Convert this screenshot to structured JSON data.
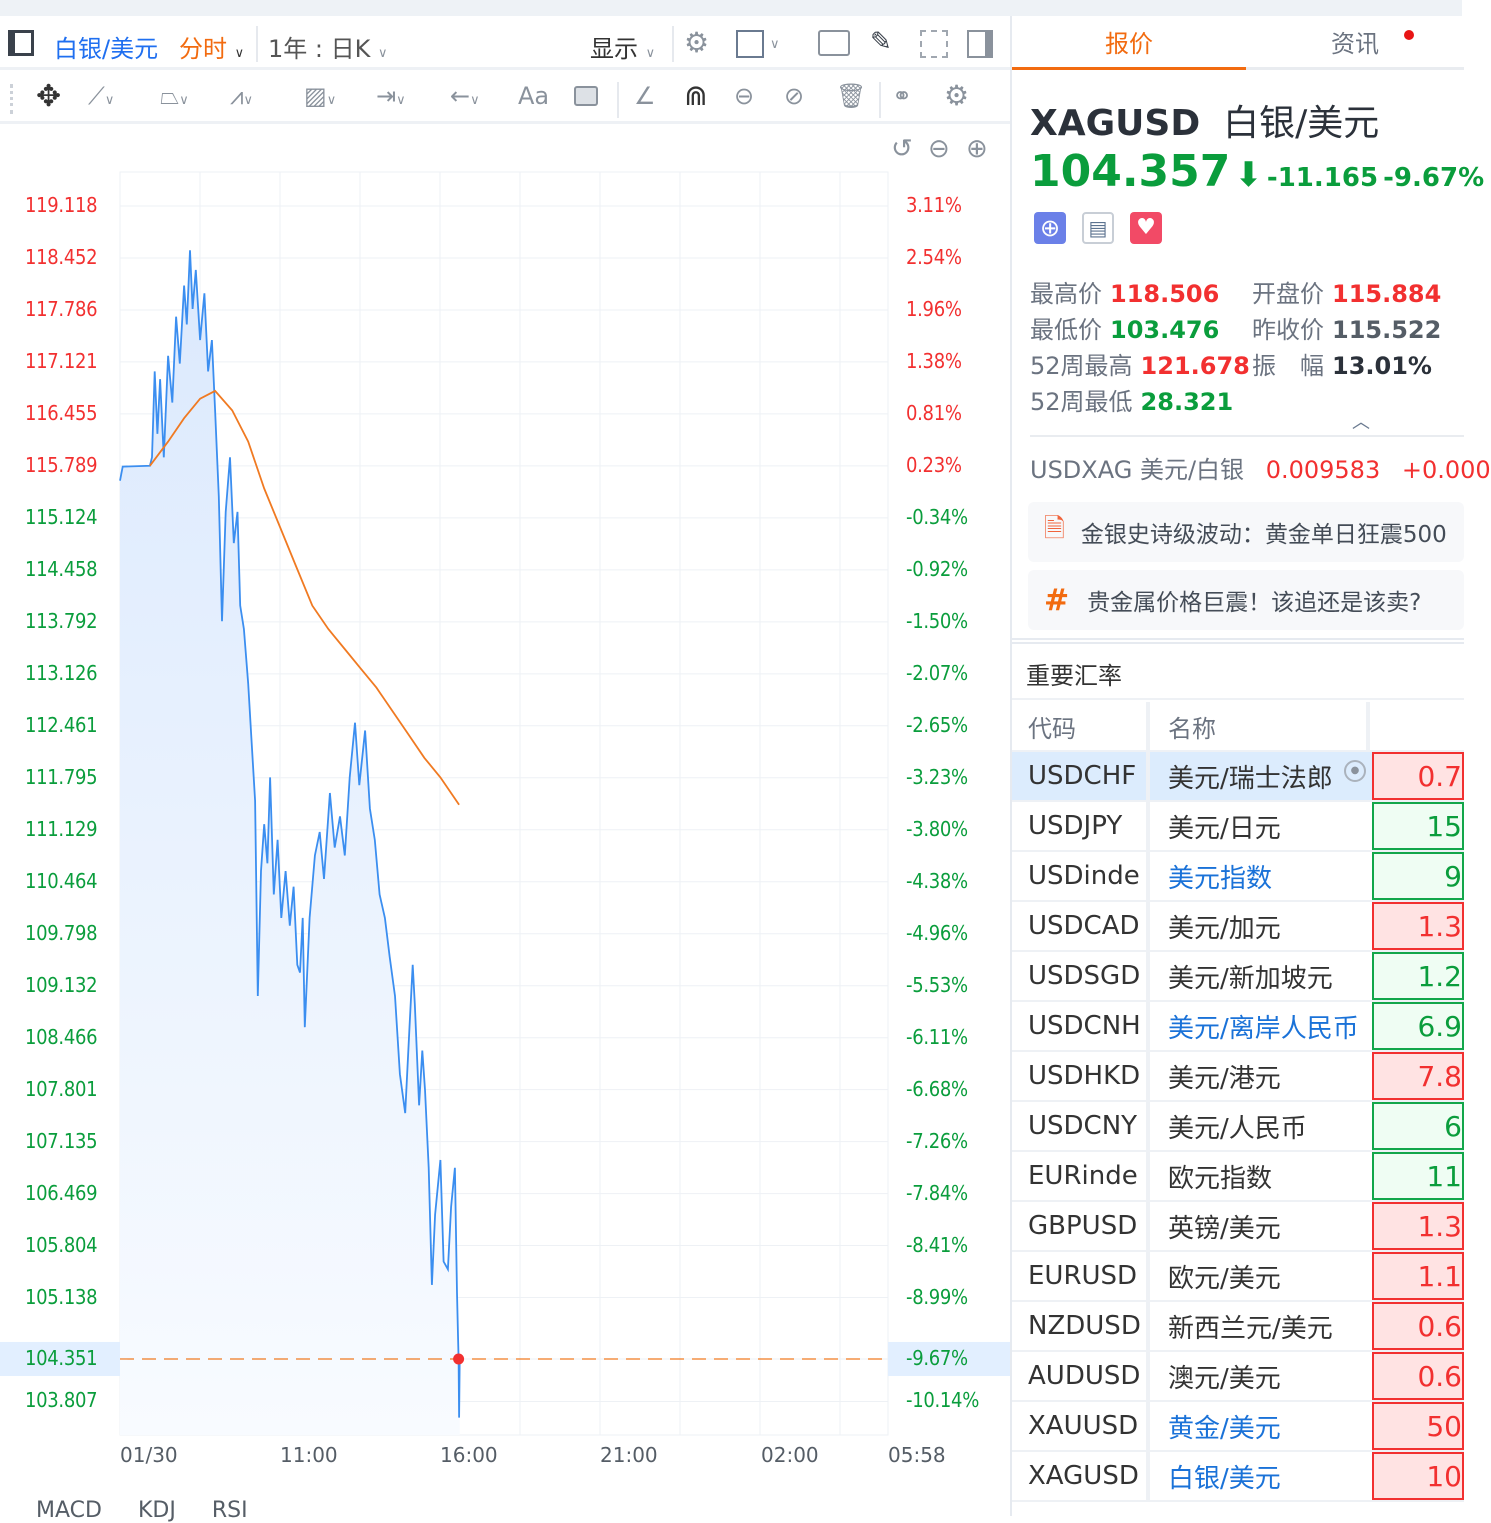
{
  "toolbar": {
    "symbol": "白银/美元",
    "period": "分时",
    "range": "1年 : 日K",
    "display": "显示"
  },
  "drawing_tools": [
    "move",
    "line",
    "polyline",
    "wave",
    "fib",
    "measure",
    "arrow",
    "text",
    "comment",
    "ruler",
    "magnet",
    "hide-drawings",
    "visibility",
    "delete",
    "compare",
    "settings"
  ],
  "chart": {
    "zoom_controls": [
      "undo",
      "zoom-out",
      "zoom-in"
    ],
    "bottom_tabs": [
      "MACD",
      "KDJ",
      "RSI"
    ]
  },
  "chart_data": {
    "type": "line",
    "prev_close": 115.522,
    "last_price": 104.351,
    "last_pct": "-9.67%",
    "y_ticks": [
      "119.118",
      "118.452",
      "117.786",
      "117.121",
      "116.455",
      "115.789",
      "115.124",
      "114.458",
      "113.792",
      "113.126",
      "112.461",
      "111.795",
      "111.129",
      "110.464",
      "109.798",
      "109.132",
      "108.466",
      "107.801",
      "107.135",
      "106.469",
      "105.804",
      "105.138",
      "104.351",
      "103.807"
    ],
    "pct_ticks": [
      "3.11%",
      "2.54%",
      "1.96%",
      "1.38%",
      "0.81%",
      "0.23%",
      "-0.34%",
      "-0.92%",
      "-1.50%",
      "-2.07%",
      "-2.65%",
      "-3.23%",
      "-3.80%",
      "-4.38%",
      "-4.96%",
      "-5.53%",
      "-6.11%",
      "-6.68%",
      "-7.26%",
      "-7.84%",
      "-8.41%",
      "-8.99%",
      "-9.67%",
      "-10.14%"
    ],
    "x_ticks": [
      "01/30",
      "11:00",
      "16:00",
      "21:00",
      "02:00",
      "05:58"
    ],
    "x_range": [
      "06:00",
      "05:58"
    ],
    "y_range": [
      103.2,
      119.6
    ],
    "colors": {
      "price": "#3b8ef0",
      "avg": "#f07a22",
      "up": "#f23030",
      "down": "#0a9d3c",
      "fill": "#dbe9fd"
    },
    "price": [
      [
        "06:00",
        115.6
      ],
      [
        "06:05",
        115.78
      ],
      [
        "06:56",
        115.79
      ],
      [
        "07:00",
        115.9
      ],
      [
        "07:05",
        117.0
      ],
      [
        "07:10",
        116.2
      ],
      [
        "07:15",
        116.9
      ],
      [
        "07:22",
        115.9
      ],
      [
        "07:30",
        117.2
      ],
      [
        "07:38",
        116.6
      ],
      [
        "07:45",
        117.7
      ],
      [
        "07:52",
        117.1
      ],
      [
        "08:00",
        118.1
      ],
      [
        "08:05",
        117.6
      ],
      [
        "08:11",
        118.55
      ],
      [
        "08:16",
        117.8
      ],
      [
        "08:22",
        118.3
      ],
      [
        "08:30",
        117.4
      ],
      [
        "08:38",
        118.0
      ],
      [
        "08:45",
        117.0
      ],
      [
        "08:52",
        117.4
      ],
      [
        "08:58",
        116.5
      ],
      [
        "09:05",
        115.4
      ],
      [
        "09:11",
        113.8
      ],
      [
        "09:18",
        115.2
      ],
      [
        "09:26",
        115.9
      ],
      [
        "09:33",
        114.8
      ],
      [
        "09:40",
        115.2
      ],
      [
        "09:45",
        114.0
      ],
      [
        "09:52",
        113.7
      ],
      [
        "10:00",
        113.0
      ],
      [
        "10:06",
        112.3
      ],
      [
        "10:13",
        111.5
      ],
      [
        "10:18",
        109.0
      ],
      [
        "10:24",
        110.6
      ],
      [
        "10:30",
        111.2
      ],
      [
        "10:36",
        110.7
      ],
      [
        "10:41",
        111.8
      ],
      [
        "10:48",
        110.3
      ],
      [
        "10:55",
        111.0
      ],
      [
        "11:02",
        110.0
      ],
      [
        "11:10",
        110.6
      ],
      [
        "11:18",
        109.9
      ],
      [
        "11:25",
        110.4
      ],
      [
        "11:32",
        109.4
      ],
      [
        "11:37",
        109.3
      ],
      [
        "11:42",
        110.0
      ],
      [
        "11:46",
        108.6
      ],
      [
        "11:55",
        110.0
      ],
      [
        "12:05",
        110.8
      ],
      [
        "12:14",
        111.1
      ],
      [
        "12:22",
        110.5
      ],
      [
        "12:33",
        111.6
      ],
      [
        "12:42",
        110.9
      ],
      [
        "12:52",
        111.3
      ],
      [
        "13:01",
        110.8
      ],
      [
        "13:10",
        111.8
      ],
      [
        "13:20",
        112.5
      ],
      [
        "13:28",
        111.7
      ],
      [
        "13:39",
        112.4
      ],
      [
        "13:48",
        111.4
      ],
      [
        "13:57",
        111.0
      ],
      [
        "14:06",
        110.3
      ],
      [
        "14:16",
        110.0
      ],
      [
        "14:25",
        109.5
      ],
      [
        "14:35",
        109.0
      ],
      [
        "14:44",
        108.0
      ],
      [
        "14:54",
        107.5
      ],
      [
        "15:02",
        108.6
      ],
      [
        "15:08",
        109.4
      ],
      [
        "15:12",
        108.9
      ],
      [
        "15:20",
        107.6
      ],
      [
        "15:26",
        108.3
      ],
      [
        "15:31",
        107.8
      ],
      [
        "15:38",
        106.8
      ],
      [
        "15:44",
        105.3
      ],
      [
        "15:50",
        106.2
      ],
      [
        "16:00",
        106.9
      ],
      [
        "16:06",
        105.6
      ],
      [
        "16:14",
        105.5
      ],
      [
        "16:20",
        106.3
      ],
      [
        "16:27",
        106.8
      ],
      [
        "16:31",
        105.2
      ],
      [
        "16:33",
        104.6
      ],
      [
        "16:34",
        104.35
      ],
      [
        "16:35",
        103.6
      ],
      [
        "16:36",
        104.35
      ]
    ],
    "avg": [
      [
        "06:56",
        115.79
      ],
      [
        "07:30",
        116.1
      ],
      [
        "08:00",
        116.4
      ],
      [
        "08:30",
        116.65
      ],
      [
        "08:58",
        116.75
      ],
      [
        "09:30",
        116.5
      ],
      [
        "10:00",
        116.1
      ],
      [
        "10:30",
        115.5
      ],
      [
        "11:00",
        115.0
      ],
      [
        "11:30",
        114.5
      ],
      [
        "12:00",
        114.0
      ],
      [
        "12:30",
        113.7
      ],
      [
        "13:00",
        113.45
      ],
      [
        "13:30",
        113.2
      ],
      [
        "14:00",
        112.95
      ],
      [
        "14:30",
        112.65
      ],
      [
        "15:00",
        112.35
      ],
      [
        "15:30",
        112.05
      ],
      [
        "16:00",
        111.8
      ],
      [
        "16:35",
        111.45
      ]
    ]
  },
  "quote": {
    "tabs": [
      "报价",
      "资讯"
    ],
    "code": "XAGUSD",
    "name": "白银/美元",
    "price": "104.357",
    "change": "-11.165",
    "change_pct": "-9.67%",
    "stats": {
      "high_label": "最高价",
      "high": "118.506",
      "open_label": "开盘价",
      "open": "115.884",
      "low_label": "最低价",
      "low": "103.476",
      "prev_label": "昨收价",
      "prev": "115.522",
      "w52h_label": "52周最高",
      "w52h": "121.678",
      "amp_label": "振　幅",
      "amp": "13.01%",
      "w52l_label": "52周最低",
      "w52l": "28.321"
    },
    "inverse": {
      "code": "USDXAG",
      "name": "美元/白银",
      "price": "0.009583",
      "change": "+0.000"
    },
    "news": [
      "金银史诗级波动：黄金单日狂震500",
      "贵金属价格巨震！该追还是该卖?"
    ]
  },
  "rates": {
    "title": "重要汇率",
    "headers": [
      "代码",
      "名称"
    ],
    "rows": [
      {
        "code": "USDCHF",
        "name": "美元/瑞士法郎",
        "value": "0.7",
        "dir": "up",
        "link": false
      },
      {
        "code": "USDJPY",
        "name": "美元/日元",
        "value": "15",
        "dir": "down",
        "link": false
      },
      {
        "code": "USDinde",
        "name": "美元指数",
        "value": "9",
        "dir": "down",
        "link": true
      },
      {
        "code": "USDCAD",
        "name": "美元/加元",
        "value": "1.3",
        "dir": "up",
        "link": false
      },
      {
        "code": "USDSGD",
        "name": "美元/新加坡元",
        "value": "1.2",
        "dir": "down",
        "link": false
      },
      {
        "code": "USDCNH",
        "name": "美元/离岸人民币",
        "value": "6.9",
        "dir": "down",
        "link": true
      },
      {
        "code": "USDHKD",
        "name": "美元/港元",
        "value": "7.8",
        "dir": "up",
        "link": false
      },
      {
        "code": "USDCNY",
        "name": "美元/人民币",
        "value": "6",
        "dir": "down",
        "link": false
      },
      {
        "code": "EURinde",
        "name": "欧元指数",
        "value": "11",
        "dir": "down",
        "link": false
      },
      {
        "code": "GBPUSD",
        "name": "英镑/美元",
        "value": "1.3",
        "dir": "up",
        "link": false
      },
      {
        "code": "EURUSD",
        "name": "欧元/美元",
        "value": "1.1",
        "dir": "up",
        "link": false
      },
      {
        "code": "NZDUSD",
        "name": "新西兰元/美元",
        "value": "0.6",
        "dir": "up",
        "link": false
      },
      {
        "code": "AUDUSD",
        "name": "澳元/美元",
        "value": "0.6",
        "dir": "up",
        "link": false
      },
      {
        "code": "XAUUSD",
        "name": "黄金/美元",
        "value": "50",
        "dir": "up",
        "link": true
      },
      {
        "code": "XAGUSD",
        "name": "白银/美元",
        "value": "10",
        "dir": "up",
        "link": true
      }
    ]
  }
}
